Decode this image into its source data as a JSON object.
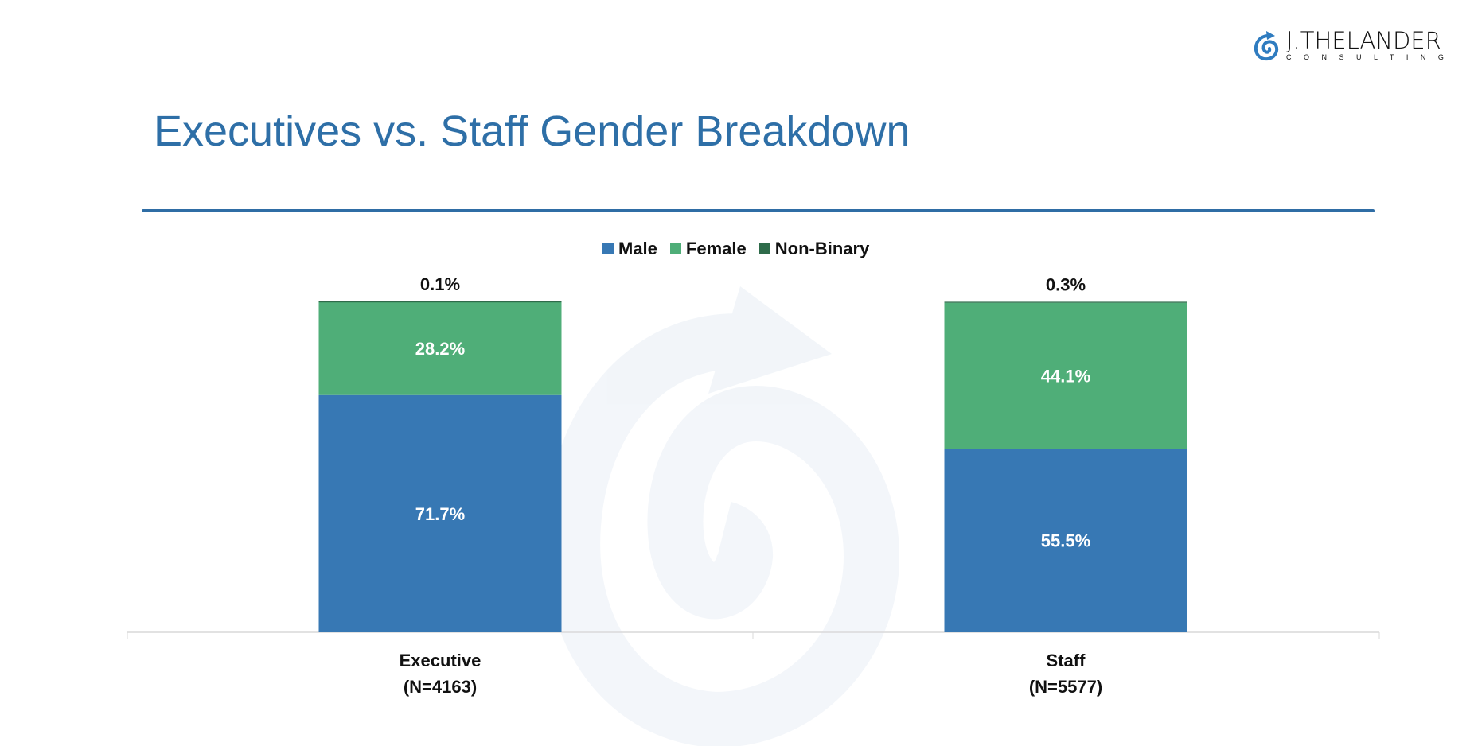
{
  "logo": {
    "main": "J.THELANDER",
    "sub": "CONSULTING"
  },
  "title": "Executives vs. Staff Gender Breakdown",
  "chart_data": {
    "type": "bar",
    "stacked": true,
    "percent_stacked": true,
    "categories": [
      "Executive",
      "Staff"
    ],
    "category_sublabels": [
      "(N=4163)",
      "(N=5577)"
    ],
    "series": [
      {
        "name": "Male",
        "color": "#3778b4",
        "values": [
          71.7,
          55.5
        ],
        "labels": [
          "71.7%",
          "55.5%"
        ]
      },
      {
        "name": "Female",
        "color": "#4fae78",
        "values": [
          28.2,
          44.1
        ],
        "labels": [
          "28.2%",
          "44.1%"
        ]
      },
      {
        "name": "Non-Binary",
        "color": "#2e6b4a",
        "values": [
          0.1,
          0.3
        ],
        "labels": [
          "0.1%",
          "0.3%"
        ]
      }
    ],
    "ylim": [
      0,
      100
    ],
    "grid": false,
    "legend": "top-center"
  }
}
